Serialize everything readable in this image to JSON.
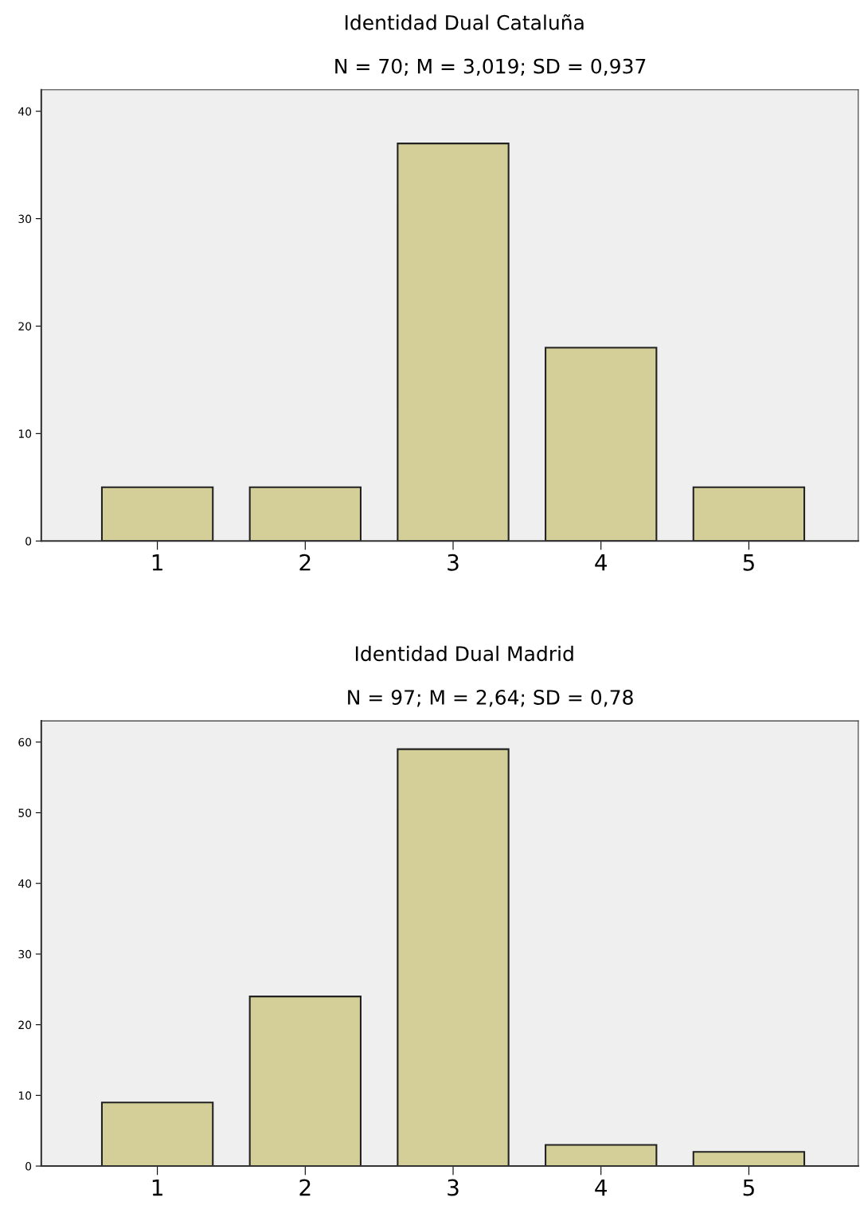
{
  "chart_data": [
    {
      "type": "bar",
      "title": "Identidad Dual Cataluña",
      "subtitle": "N = 70; M = 3,019; SD = 0,937",
      "categories": [
        "1",
        "2",
        "3",
        "4",
        "5"
      ],
      "values": [
        5,
        5,
        37,
        18,
        5
      ],
      "color": "#d4cf98",
      "ylim": [
        0,
        42
      ],
      "yticks": [
        0,
        10,
        20,
        30,
        40
      ],
      "grid": false,
      "legend": false
    },
    {
      "type": "bar",
      "title": "Identidad Dual Madrid",
      "subtitle": "N = 97; M = 2,64; SD = 0,78",
      "categories": [
        "1",
        "2",
        "3",
        "4",
        "5"
      ],
      "values": [
        9,
        24,
        59,
        3,
        2
      ],
      "color": "#d4cf98",
      "ylim": [
        0,
        63
      ],
      "yticks": [
        0,
        10,
        20,
        30,
        40,
        50,
        60
      ],
      "grid": false,
      "legend": false
    }
  ]
}
